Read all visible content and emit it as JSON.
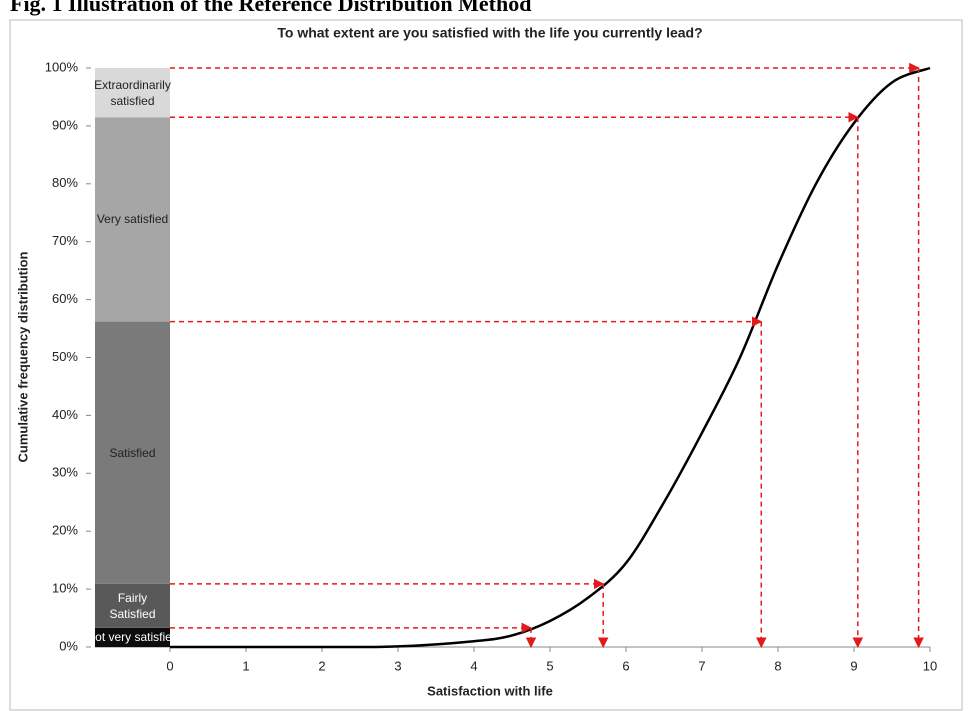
{
  "header": {
    "title": "Fig. 1 Illustration of the Reference Distribution Method"
  },
  "chart_data": {
    "type": "line",
    "title": "To what extent are you satisfied with the life you currently lead?",
    "x_label": "Satisfaction with life",
    "y_label": "Cumulative frequency distribution",
    "x": [
      0,
      1,
      2,
      3,
      4,
      4.5,
      5,
      5.5,
      6,
      6.5,
      7,
      7.5,
      8,
      8.5,
      9,
      9.5,
      10
    ],
    "values": [
      0,
      0,
      0,
      0.1,
      1,
      2,
      4.5,
      8.5,
      14.5,
      25,
      37,
      50,
      66,
      80,
      90.5,
      97.5,
      100
    ],
    "color": "#000000",
    "xlim": [
      0,
      10
    ],
    "xticks": [
      0,
      1,
      2,
      3,
      4,
      5,
      6,
      7,
      8,
      9,
      10
    ],
    "ylim": [
      0,
      100
    ],
    "yticks": [
      {
        "value": 0,
        "label": "0%"
      },
      {
        "value": 10,
        "label": "10%"
      },
      {
        "value": 20,
        "label": "20%"
      },
      {
        "value": 30,
        "label": "30%"
      },
      {
        "value": 40,
        "label": "40%"
      },
      {
        "value": 50,
        "label": "50%"
      },
      {
        "value": 60,
        "label": "60%"
      },
      {
        "value": 70,
        "label": "70%"
      },
      {
        "value": 80,
        "label": "80%"
      },
      {
        "value": 90,
        "label": "90%"
      },
      {
        "value": 100,
        "label": "100%"
      }
    ],
    "bands": {
      "categories": [
        "Not very satisfied",
        "Fairly Satisfied",
        "Satisfied",
        "Very satisfied",
        "Extraordinarily satisfied"
      ],
      "values": [
        3.3,
        7.6,
        45.3,
        35.3,
        8.5
      ],
      "colors": [
        "#0d0d0d",
        "#595959",
        "#7a7a7a",
        "#a6a6a6",
        "#d9d9d9"
      ],
      "text_colors": [
        "#ffffff",
        "#ffffff",
        "#222222",
        "#222222",
        "#222222"
      ]
    },
    "thresholds": [
      4.75,
      5.7,
      7.78,
      9.05,
      9.85
    ],
    "arrow_color": "#e31a1c"
  }
}
